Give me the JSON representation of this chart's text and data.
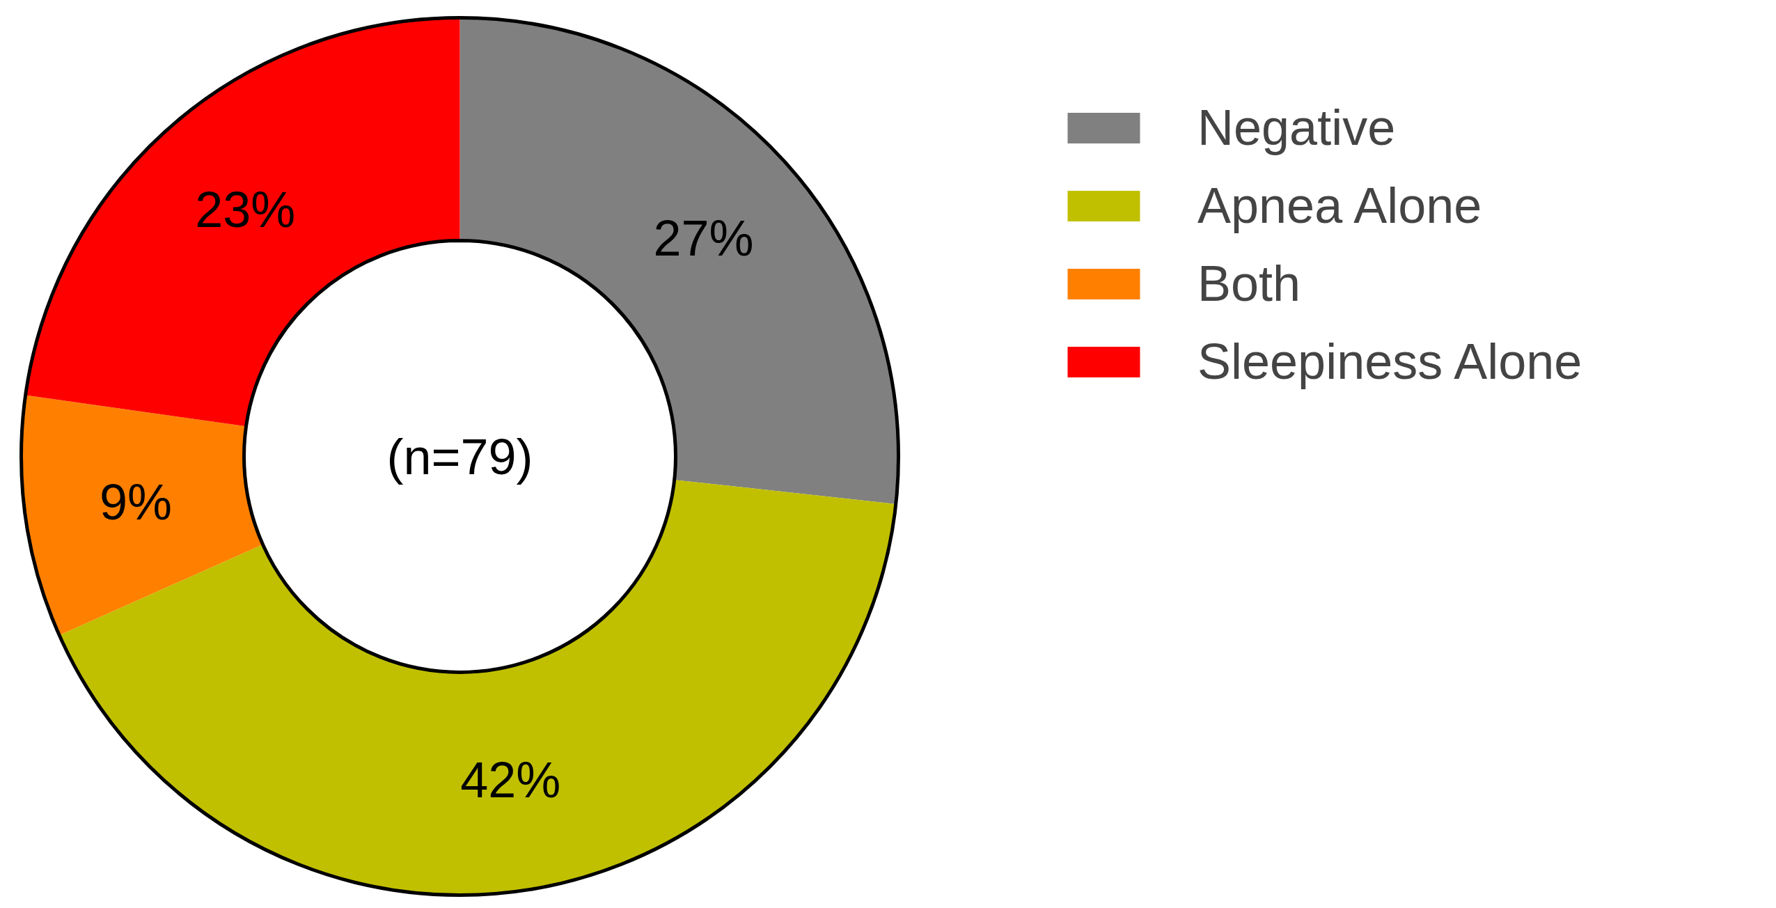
{
  "chart_data": {
    "type": "donut",
    "categories": [
      "Negative",
      "Apnea Alone",
      "Both",
      "Sleepiness Alone"
    ],
    "values": [
      27,
      42,
      9,
      23
    ],
    "value_labels": [
      "27%",
      "42%",
      "9%",
      "23%"
    ],
    "colors": [
      "#808080",
      "#c0c000",
      "#ff8000",
      "#ff0000"
    ],
    "annotations": [
      "(n=79)"
    ],
    "legend": "top right"
  }
}
